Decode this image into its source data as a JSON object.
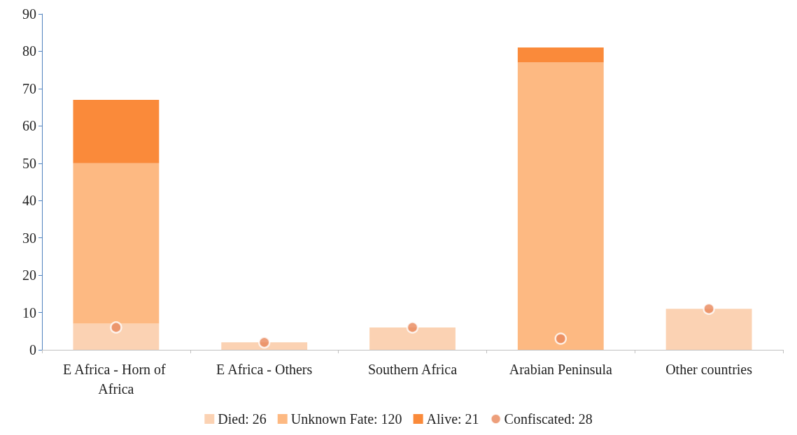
{
  "chart_data": {
    "type": "bar",
    "stacked": true,
    "categories": [
      "E Africa - Horn of Africa",
      "E Africa - Others",
      "Southern Africa",
      "Arabian Peninsula",
      "Other countries"
    ],
    "series": [
      {
        "name": "Died: 26",
        "color": "#fbd2b3",
        "values": [
          7,
          2,
          6,
          0,
          11
        ]
      },
      {
        "name": "Unknown Fate: 120",
        "color": "#fdb982",
        "values": [
          43,
          0,
          0,
          77,
          0
        ]
      },
      {
        "name": "Alive: 21",
        "color": "#fa8a3a",
        "values": [
          17,
          0,
          0,
          4,
          0
        ]
      },
      {
        "name": "Confiscated: 28",
        "type": "scatter",
        "color": "#e8875a",
        "x": [
          "E Africa - Horn of Africa",
          "E Africa - Others",
          "Southern Africa",
          "Arabian Peninsula",
          "Other countries"
        ],
        "values": [
          6,
          2,
          6,
          3,
          11
        ]
      }
    ],
    "ylim": [
      0,
      90
    ],
    "yticks": [
      0,
      10,
      20,
      30,
      40,
      50,
      60,
      70,
      80,
      90
    ],
    "grid": false,
    "legend": "bottom",
    "marker": "circle"
  }
}
